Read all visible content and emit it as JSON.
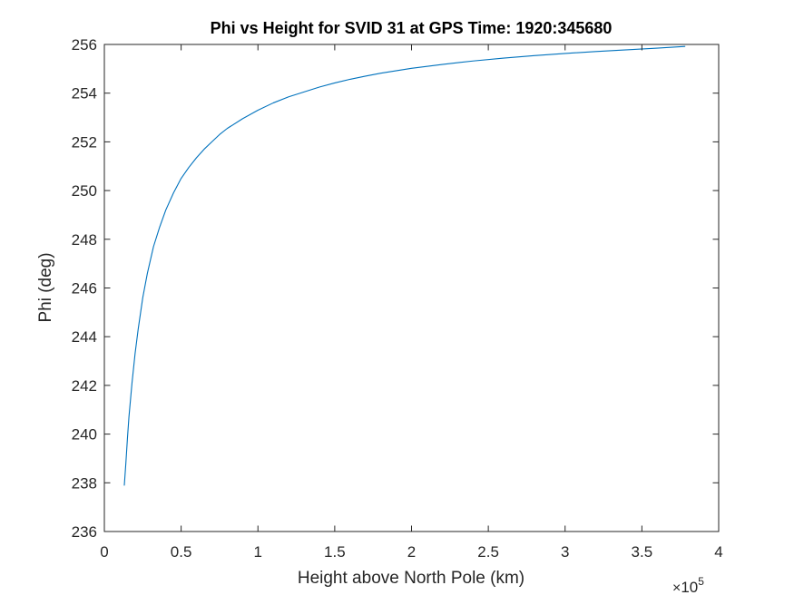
{
  "chart_data": {
    "type": "line",
    "title": "Phi vs Height for SVID 31 at GPS Time: 1920:345680",
    "xlabel": "Height above North Pole (km)",
    "ylabel": "Phi (deg)",
    "xlim": [
      0,
      400000
    ],
    "ylim": [
      236,
      256
    ],
    "x_tick_values": [
      0,
      50000,
      100000,
      150000,
      200000,
      250000,
      300000,
      350000,
      400000
    ],
    "x_tick_labels": [
      "0",
      "0.5",
      "1",
      "1.5",
      "2",
      "2.5",
      "3",
      "3.5",
      "4"
    ],
    "y_ticks": [
      236,
      238,
      240,
      242,
      244,
      246,
      248,
      250,
      252,
      254,
      256
    ],
    "x_exponent": {
      "times": "×",
      "base": "10",
      "power": "5"
    },
    "grid": false,
    "legend": "none",
    "series": [
      {
        "color": "#0072BD",
        "x": [
          13000,
          14000,
          15000,
          16000,
          18000,
          20000,
          22000,
          25000,
          28000,
          32000,
          36000,
          40000,
          45000,
          50000,
          55000,
          60000,
          65000,
          70000,
          75000,
          80000,
          90000,
          100000,
          110000,
          120000,
          130000,
          140000,
          150000,
          160000,
          170000,
          180000,
          200000,
          220000,
          240000,
          260000,
          280000,
          300000,
          320000,
          340000,
          360000,
          378000
        ],
        "y": [
          237.9,
          238.8,
          239.8,
          240.7,
          242.1,
          243.3,
          244.3,
          245.6,
          246.6,
          247.7,
          248.5,
          249.2,
          249.9,
          250.5,
          250.95,
          251.35,
          251.7,
          252.0,
          252.3,
          252.55,
          252.95,
          253.3,
          253.6,
          253.85,
          254.05,
          254.25,
          254.42,
          254.57,
          254.7,
          254.82,
          255.02,
          255.18,
          255.32,
          255.44,
          255.54,
          255.63,
          255.71,
          255.78,
          255.85,
          255.92
        ]
      }
    ]
  }
}
